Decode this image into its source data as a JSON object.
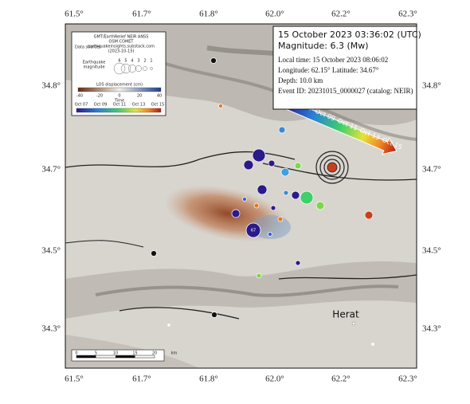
{
  "map": {
    "axes": {
      "top": [
        "61.5°",
        "61.7°",
        "61.8°",
        "62.0°",
        "62.2°",
        "62.3°"
      ],
      "bottom": [
        "61.5°",
        "61.7°",
        "61.8°",
        "62.0°",
        "62.2°",
        "62.3°"
      ],
      "left": [
        "34.8°",
        "34.7°",
        "34.5°",
        "34.3°"
      ],
      "right": [
        "34.8°",
        "34.7°",
        "34.5°",
        "34.3°"
      ]
    },
    "event": {
      "title": "15 October 2023 03:36:02 (UTC)",
      "magnitude": "Magnitude: 6.3 (Mw)",
      "local_time": "Local time: 15 October 2023 08:06:02",
      "location": "Longitude: 62.15°  Latitude: 34.67°",
      "depth": "Depth: 10.0 km",
      "event_id": "Event ID: 20231015_0000027 (catalog: NEIR)"
    },
    "legend": {
      "data_sources_label": "Data sources",
      "data_sources": [
        "GMT/EarthRelief NEIR ANSS",
        "OSM COMET",
        "earthquakeinsights.substack.com",
        "(2023-10-15)"
      ],
      "magnitude_label": [
        "Earthquake",
        "magnitude"
      ],
      "magnitudes": [
        "6",
        "5",
        "4",
        "3",
        "2",
        "1"
      ],
      "los_label": "LOS displacement (cm)",
      "los_ticks": [
        "-40",
        "-20",
        "0",
        "20",
        "40"
      ],
      "time_label": "Time",
      "time_ticks": [
        "Oct 07",
        "Oct 09",
        "Oct 11",
        "Oct 13",
        "Oct 15"
      ]
    },
    "arrow_labels": [
      "Oct 07",
      "Oct 09",
      "Oct 11",
      "Oct 13",
      "Oct 15"
    ],
    "place": "Herat",
    "event_marker_label": "67",
    "scale_bar": [
      "0",
      "5",
      "10",
      "15",
      "20",
      "km"
    ]
  }
}
